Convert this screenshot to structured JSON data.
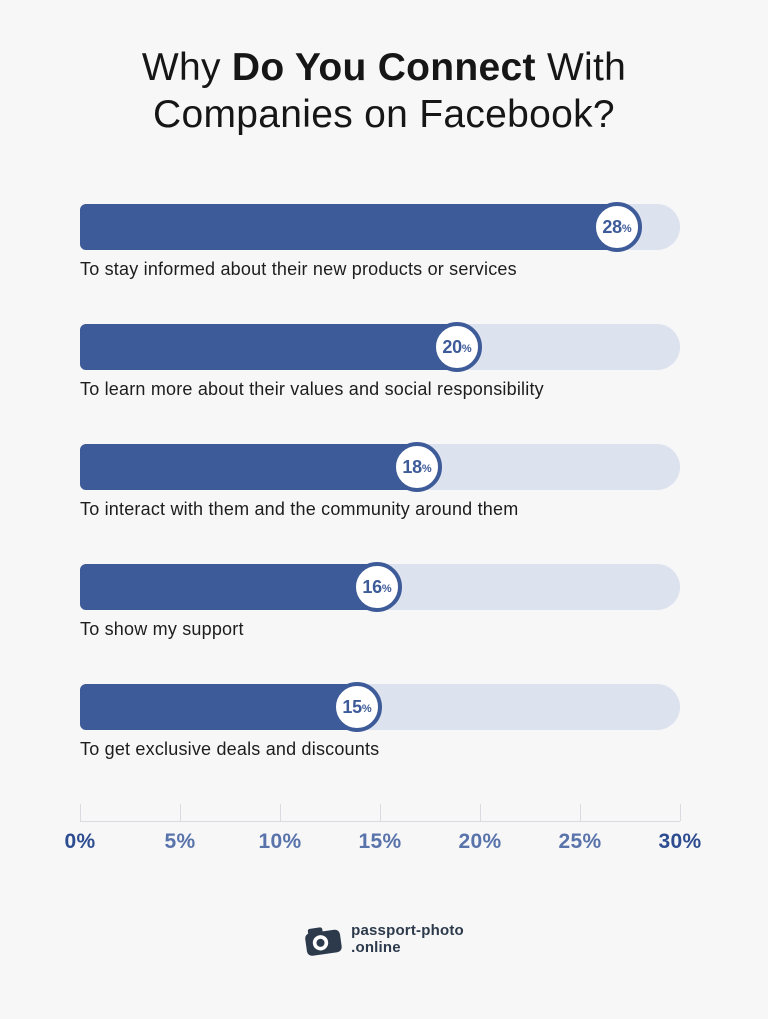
{
  "title": {
    "line1_prefix": "Why ",
    "line1_bold": "Do You Connect",
    "line1_suffix": " With",
    "line2": "Companies on Facebook?"
  },
  "chart_data": {
    "type": "bar",
    "orientation": "horizontal",
    "title": "Why Do You Connect With Companies on Facebook?",
    "xlabel": "",
    "ylabel": "",
    "xlim": [
      0,
      30
    ],
    "x_ticks": [
      "0%",
      "5%",
      "10%",
      "15%",
      "20%",
      "25%",
      "30%"
    ],
    "grid": false,
    "legend": "none",
    "value_suffix": "%",
    "bars": [
      {
        "label": "To stay informed about their new products or services",
        "value": 28
      },
      {
        "label": "To learn more about their values and social responsibility",
        "value": 20
      },
      {
        "label": "To interact with them and the community around them",
        "value": 18
      },
      {
        "label": "To show my support",
        "value": 16
      },
      {
        "label": "To get exclusive deals and discounts",
        "value": 15
      }
    ],
    "colors": {
      "bar_fill": "#3d5a99",
      "bar_track": "#dde2ef",
      "badge_background": "#ffffff",
      "badge_border": "#3d5a99",
      "badge_text": "#3d5a99",
      "axis_line": "#dadbe0",
      "axis_label_mid": "#5973ab",
      "axis_label_ends": "#2d4d90",
      "label_text": "#1d1d1d",
      "background": "#f7f7f8",
      "footer_text": "#2c3a4b"
    }
  },
  "footer": {
    "line1": "passport-photo",
    "line2": ".online"
  }
}
